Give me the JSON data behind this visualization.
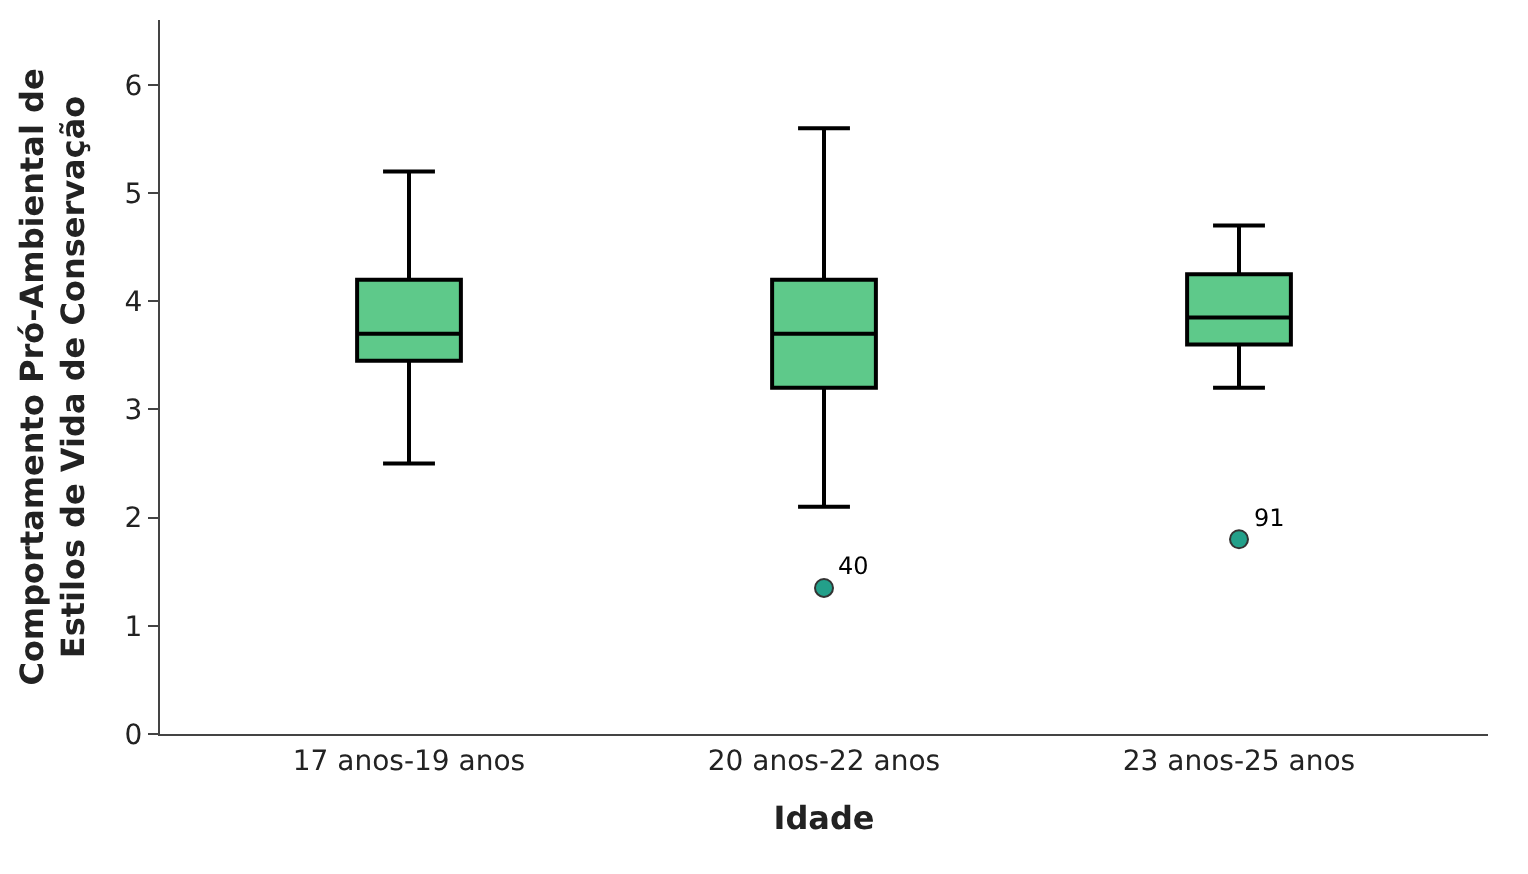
{
  "chart_data": {
    "type": "box",
    "xlabel": "Idade",
    "ylabel": "Comportamento Pró-Ambiental de\nEstilos de Vida de Conservação",
    "categories": [
      "17 anos-19 anos",
      "20 anos-22 anos",
      "23 anos-25 anos"
    ],
    "boxes": [
      {
        "low": 2.5,
        "q1": 3.45,
        "median": 3.7,
        "q3": 4.2,
        "high": 5.2
      },
      {
        "low": 2.1,
        "q1": 3.2,
        "median": 3.7,
        "q3": 4.2,
        "high": 5.6,
        "outliers": [
          1.35
        ]
      },
      {
        "low": 3.2,
        "q1": 3.6,
        "median": 3.85,
        "q3": 4.25,
        "high": 4.7,
        "outliers": [
          1.8
        ]
      }
    ],
    "color": "#5ec98a",
    "ylim": [
      0,
      6.6
    ],
    "yticks": [
      0,
      1,
      2,
      3,
      4,
      5,
      6
    ],
    "annotations": [
      "40",
      "91"
    ]
  }
}
